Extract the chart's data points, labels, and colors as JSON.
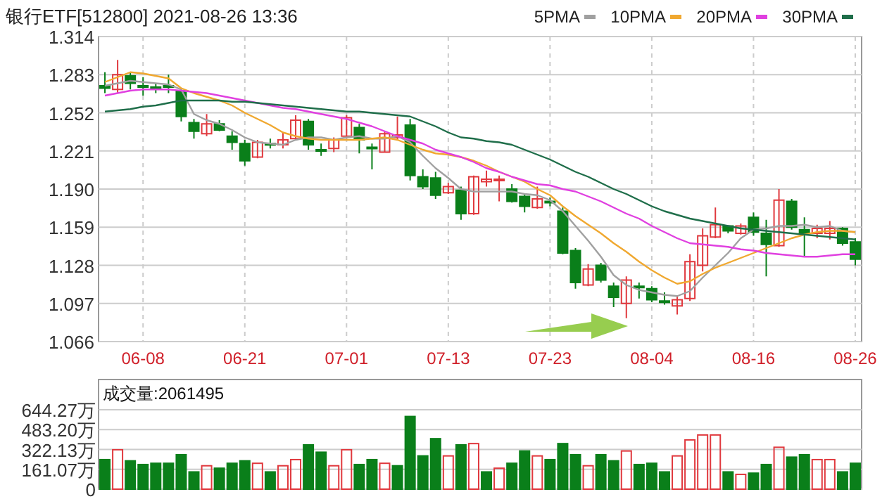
{
  "chart_data": [
    {
      "type": "candlestick",
      "title": "银行ETF[512800] 2021-08-26 13:36",
      "categories": [
        null,
        null,
        null,
        "06-08",
        null,
        null,
        null,
        null,
        null,
        null,
        null,
        "06-21",
        null,
        null,
        null,
        null,
        null,
        null,
        null,
        "07-01",
        null,
        null,
        null,
        null,
        null,
        null,
        null,
        "07-13",
        null,
        null,
        null,
        null,
        null,
        null,
        null,
        "07-23",
        null,
        null,
        null,
        null,
        null,
        null,
        null,
        "08-04",
        null,
        null,
        null,
        null,
        null,
        null,
        null,
        "08-16",
        null,
        null,
        null,
        null,
        null,
        null,
        null,
        "08-26"
      ],
      "ohlc": [
        [
          1.274,
          1.285,
          1.268,
          1.272
        ],
        [
          1.271,
          1.295,
          1.268,
          1.283
        ],
        [
          1.282,
          1.285,
          1.271,
          1.276
        ],
        [
          1.274,
          1.281,
          1.266,
          1.273
        ],
        [
          1.273,
          1.276,
          1.268,
          1.272
        ],
        [
          1.274,
          1.283,
          1.268,
          1.273
        ],
        [
          1.27,
          1.271,
          1.245,
          1.249
        ],
        [
          1.244,
          1.247,
          1.231,
          1.237
        ],
        [
          1.235,
          1.251,
          1.233,
          1.243
        ],
        [
          1.243,
          1.246,
          1.237,
          1.238
        ],
        [
          1.233,
          1.237,
          1.222,
          1.228
        ],
        [
          1.227,
          1.23,
          1.209,
          1.213
        ],
        [
          1.216,
          1.23,
          1.215,
          1.228
        ],
        [
          1.227,
          1.231,
          1.223,
          1.226
        ],
        [
          1.226,
          1.236,
          1.223,
          1.23
        ],
        [
          1.231,
          1.25,
          1.23,
          1.246
        ],
        [
          1.245,
          1.247,
          1.222,
          1.226
        ],
        [
          1.222,
          1.227,
          1.217,
          1.221
        ],
        [
          1.223,
          1.232,
          1.22,
          1.23
        ],
        [
          1.233,
          1.25,
          1.231,
          1.248
        ],
        [
          1.24,
          1.243,
          1.219,
          1.23
        ],
        [
          1.224,
          1.227,
          1.206,
          1.223
        ],
        [
          1.22,
          1.237,
          1.22,
          1.235
        ],
        [
          1.232,
          1.249,
          1.23,
          1.234
        ],
        [
          1.242,
          1.247,
          1.197,
          1.201
        ],
        [
          1.2,
          1.206,
          1.19,
          1.192
        ],
        [
          1.199,
          1.204,
          1.182,
          1.185
        ],
        [
          1.187,
          1.195,
          1.186,
          1.192
        ],
        [
          1.189,
          1.192,
          1.165,
          1.17
        ],
        [
          1.17,
          1.201,
          1.169,
          1.2
        ],
        [
          1.196,
          1.205,
          1.192,
          1.198
        ],
        [
          1.197,
          1.201,
          1.18,
          1.198
        ],
        [
          1.19,
          1.194,
          1.179,
          1.18
        ],
        [
          1.184,
          1.186,
          1.171,
          1.176
        ],
        [
          1.175,
          1.192,
          1.174,
          1.182
        ],
        [
          1.18,
          1.183,
          1.176,
          1.179
        ],
        [
          1.172,
          1.175,
          1.137,
          1.138
        ],
        [
          1.14,
          1.142,
          1.109,
          1.114
        ],
        [
          1.112,
          1.129,
          1.111,
          1.125
        ],
        [
          1.128,
          1.13,
          1.114,
          1.116
        ],
        [
          1.111,
          1.114,
          1.094,
          1.102
        ],
        [
          1.097,
          1.119,
          1.085,
          1.116
        ],
        [
          1.111,
          1.114,
          1.101,
          1.11
        ],
        [
          1.109,
          1.111,
          1.098,
          1.1
        ],
        [
          1.099,
          1.106,
          1.096,
          1.098
        ],
        [
          1.095,
          1.103,
          1.088,
          1.1
        ],
        [
          1.101,
          1.137,
          1.099,
          1.131
        ],
        [
          1.128,
          1.158,
          1.123,
          1.152
        ],
        [
          1.151,
          1.175,
          1.15,
          1.161
        ],
        [
          1.16,
          1.16,
          1.154,
          1.156
        ],
        [
          1.154,
          1.162,
          1.153,
          1.16
        ],
        [
          1.167,
          1.171,
          1.152,
          1.155
        ],
        [
          1.154,
          1.165,
          1.119,
          1.145
        ],
        [
          1.144,
          1.19,
          1.143,
          1.181
        ],
        [
          1.18,
          1.182,
          1.157,
          1.159
        ],
        [
          1.157,
          1.167,
          1.135,
          1.154
        ],
        [
          1.154,
          1.161,
          1.15,
          1.158
        ],
        [
          1.154,
          1.164,
          1.149,
          1.158
        ],
        [
          1.158,
          1.159,
          1.144,
          1.146
        ],
        [
          1.147,
          1.15,
          1.128,
          1.133
        ]
      ],
      "colors": [
        "#0a7f1a",
        "#e0393e",
        "#0a7f1a",
        "#0a7f1a",
        "#0a7f1a",
        "#0a7f1a",
        "#0a7f1a",
        "#0a7f1a",
        "#e0393e",
        "#0a7f1a",
        "#0a7f1a",
        "#0a7f1a",
        "#e0393e",
        "#0a7f1a",
        "#e0393e",
        "#e0393e",
        "#0a7f1a",
        "#0a7f1a",
        "#e0393e",
        "#e0393e",
        "#0a7f1a",
        "#0a7f1a",
        "#e0393e",
        "#e0393e",
        "#0a7f1a",
        "#0a7f1a",
        "#0a7f1a",
        "#e0393e",
        "#0a7f1a",
        "#e0393e",
        "#e0393e",
        "#e0393e",
        "#0a7f1a",
        "#0a7f1a",
        "#e0393e",
        "#0a7f1a",
        "#0a7f1a",
        "#0a7f1a",
        "#e0393e",
        "#0a7f1a",
        "#0a7f1a",
        "#e0393e",
        "#0a7f1a",
        "#0a7f1a",
        "#0a7f1a",
        "#e0393e",
        "#e0393e",
        "#e0393e",
        "#e0393e",
        "#0a7f1a",
        "#e0393e",
        "#0a7f1a",
        "#0a7f1a",
        "#e0393e",
        "#0a7f1a",
        "#0a7f1a",
        "#e0393e",
        "#e0393e",
        "#0a7f1a",
        "#0a7f1a"
      ],
      "series": [
        {
          "name": "5PMA",
          "type": "line",
          "color": "#a0a0a0",
          "values": [
            1.274,
            1.276,
            1.278,
            1.277,
            1.276,
            1.275,
            1.271,
            1.251,
            1.246,
            1.243,
            1.238,
            1.232,
            1.228,
            1.227,
            1.226,
            1.23,
            1.232,
            1.232,
            1.23,
            1.232,
            1.233,
            1.231,
            1.231,
            1.233,
            1.228,
            1.217,
            1.207,
            1.199,
            1.19,
            1.188,
            1.188,
            1.188,
            1.188,
            1.186,
            1.185,
            1.181,
            1.172,
            1.16,
            1.148,
            1.135,
            1.12,
            1.112,
            1.108,
            1.106,
            1.104,
            1.103,
            1.107,
            1.118,
            1.128,
            1.138,
            1.15,
            1.157,
            1.158,
            1.16,
            1.16,
            1.161,
            1.159,
            1.16,
            1.156,
            1.155
          ]
        },
        {
          "name": "10PMA",
          "type": "line",
          "color": "#f0a830",
          "values": [
            1.277,
            1.281,
            1.285,
            1.284,
            1.282,
            1.28,
            1.272,
            1.268,
            1.265,
            1.262,
            1.258,
            1.252,
            1.247,
            1.242,
            1.236,
            1.233,
            1.231,
            1.23,
            1.23,
            1.23,
            1.23,
            1.231,
            1.232,
            1.23,
            1.226,
            1.222,
            1.219,
            1.218,
            1.216,
            1.213,
            1.209,
            1.204,
            1.2,
            1.196,
            1.19,
            1.185,
            1.176,
            1.168,
            1.161,
            1.154,
            1.146,
            1.139,
            1.131,
            1.124,
            1.118,
            1.113,
            1.115,
            1.121,
            1.126,
            1.13,
            1.134,
            1.138,
            1.142,
            1.146,
            1.15,
            1.153,
            1.155,
            1.156,
            1.156,
            1.155
          ]
        },
        {
          "name": "20PMA",
          "type": "line",
          "color": "#e040e0",
          "values": [
            1.266,
            1.268,
            1.27,
            1.271,
            1.271,
            1.271,
            1.27,
            1.269,
            1.268,
            1.266,
            1.264,
            1.262,
            1.26,
            1.258,
            1.256,
            1.255,
            1.253,
            1.251,
            1.249,
            1.247,
            1.244,
            1.241,
            1.237,
            1.233,
            1.23,
            1.227,
            1.222,
            1.219,
            1.216,
            1.212,
            1.207,
            1.204,
            1.2,
            1.197,
            1.194,
            1.193,
            1.19,
            1.188,
            1.184,
            1.18,
            1.175,
            1.17,
            1.166,
            1.16,
            1.155,
            1.15,
            1.146,
            1.145,
            1.144,
            1.143,
            1.141,
            1.14,
            1.138,
            1.137,
            1.136,
            1.135,
            1.135,
            1.136,
            1.137,
            1.137
          ]
        },
        {
          "name": "30PMA",
          "type": "line",
          "color": "#1f6e4a",
          "values": [
            1.253,
            1.254,
            1.255,
            1.257,
            1.258,
            1.26,
            1.262,
            1.262,
            1.262,
            1.262,
            1.261,
            1.261,
            1.26,
            1.259,
            1.258,
            1.257,
            1.256,
            1.255,
            1.254,
            1.253,
            1.253,
            1.252,
            1.251,
            1.25,
            1.249,
            1.245,
            1.241,
            1.236,
            1.232,
            1.231,
            1.229,
            1.228,
            1.226,
            1.222,
            1.218,
            1.214,
            1.209,
            1.204,
            1.2,
            1.195,
            1.19,
            1.186,
            1.181,
            1.176,
            1.172,
            1.169,
            1.166,
            1.164,
            1.162,
            1.16,
            1.158,
            1.157,
            1.156,
            1.155,
            1.154,
            1.153,
            1.152,
            1.151,
            1.15,
            1.149
          ]
        }
      ],
      "ylim": [
        1.066,
        1.314
      ],
      "yticks": [
        1.066,
        1.097,
        1.128,
        1.159,
        {
          "value": 1.19,
          "label": "1.190"
        },
        1.221,
        1.252,
        1.283,
        1.314
      ],
      "grid": true,
      "legend": "top right",
      "line_style": "solid"
    },
    {
      "type": "bar",
      "title": "成交量:2061495",
      "categories": [
        null,
        null,
        null,
        null,
        null,
        null,
        null,
        null,
        null,
        null,
        null,
        null,
        null,
        null,
        null,
        null,
        null,
        null,
        null,
        null,
        null,
        null,
        null,
        null,
        null,
        null,
        null,
        null,
        null,
        null,
        null,
        null,
        null,
        null,
        null,
        null,
        null,
        null,
        null,
        null,
        null,
        null,
        null,
        null,
        null,
        null,
        null,
        null,
        null,
        null,
        null,
        null,
        null,
        null,
        null,
        null,
        null,
        null,
        null,
        null
      ],
      "values": [
        240,
        320,
        230,
        200,
        210,
        210,
        280,
        140,
        190,
        170,
        210,
        230,
        210,
        140,
        190,
        240,
        360,
        300,
        190,
        320,
        200,
        240,
        210,
        190,
        590,
        270,
        410,
        270,
        360,
        370,
        140,
        170,
        210,
        310,
        270,
        240,
        370,
        280,
        190,
        280,
        230,
        310,
        200,
        210,
        140,
        270,
        400,
        440,
        440,
        140,
        120,
        130,
        200,
        340,
        260,
        280,
        240,
        240,
        140,
        210
      ],
      "colors": [
        "#0a7f1a",
        "#e0393e",
        "#0a7f1a",
        "#0a7f1a",
        "#0a7f1a",
        "#0a7f1a",
        "#0a7f1a",
        "#0a7f1a",
        "#e0393e",
        "#0a7f1a",
        "#0a7f1a",
        "#0a7f1a",
        "#e0393e",
        "#0a7f1a",
        "#e0393e",
        "#e0393e",
        "#0a7f1a",
        "#0a7f1a",
        "#e0393e",
        "#e0393e",
        "#0a7f1a",
        "#0a7f1a",
        "#e0393e",
        "#0a7f1a",
        "#0a7f1a",
        "#0a7f1a",
        "#0a7f1a",
        "#e0393e",
        "#0a7f1a",
        "#e0393e",
        "#0a7f1a",
        "#e0393e",
        "#0a7f1a",
        "#0a7f1a",
        "#e0393e",
        "#0a7f1a",
        "#0a7f1a",
        "#0a7f1a",
        "#e0393e",
        "#0a7f1a",
        "#0a7f1a",
        "#e0393e",
        "#0a7f1a",
        "#0a7f1a",
        "#0a7f1a",
        "#e0393e",
        "#e0393e",
        "#e0393e",
        "#e0393e",
        "#0a7f1a",
        "#e0393e",
        "#0a7f1a",
        "#0a7f1a",
        "#e0393e",
        "#0a7f1a",
        "#0a7f1a",
        "#e0393e",
        "#e0393e",
        "#0a7f1a",
        "#0a7f1a"
      ],
      "ylim": [
        0,
        890
      ],
      "yticks": [
        0,
        {
          "value": 161.07,
          "label": "161.07万"
        },
        {
          "value": 322.13,
          "label": "322.13万"
        },
        {
          "value": 483.2,
          "label": "483.20万"
        },
        {
          "value": 644.27,
          "label": "644.27万"
        }
      ],
      "grid": "y",
      "tick_labels": "y"
    }
  ]
}
